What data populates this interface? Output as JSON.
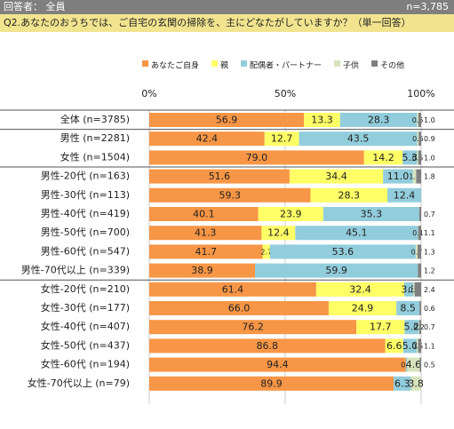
{
  "header": {
    "respondents": "回答者： 全員",
    "n_total": "n=3,785"
  },
  "question": "Q2.あなたのおうちでは、ご自宅の玄関の掃除を、主にどなたがしていますか？（単一回答）",
  "colors": {
    "self": "#f79646",
    "parent": "#ffff66",
    "spouse": "#92cddc",
    "child": "#d7e4bd",
    "other": "#7f7f7f"
  },
  "chart_data": {
    "type": "bar",
    "orientation": "horizontal",
    "stacked": "percent",
    "legend_position": "top-right",
    "xlim": [
      0,
      100
    ],
    "x_ticks": [
      "0%",
      "50%",
      "100%"
    ],
    "series": [
      {
        "name": "あなたご自身",
        "color": "#f79646"
      },
      {
        "name": "親",
        "color": "#ffff66"
      },
      {
        "name": "配偶者・パートナー",
        "color": "#92cddc"
      },
      {
        "name": "子供",
        "color": "#d7e4bd"
      },
      {
        "name": "その他",
        "color": "#7f7f7f"
      }
    ],
    "rows": [
      {
        "label": "全体 (n=3785)",
        "values": [
          56.9,
          13.3,
          28.3,
          0.5,
          1.0
        ],
        "labels": [
          "56.9",
          "13.3",
          "28.3",
          "0.5",
          "1.0"
        ]
      },
      {
        "label": "男性 (n=2281)",
        "values": [
          42.4,
          12.7,
          43.5,
          0.5,
          0.9
        ],
        "labels": [
          "42.4",
          "12.7",
          "43.5",
          "0.5",
          "0.9"
        ]
      },
      {
        "label": "女性 (n=1504)",
        "values": [
          79.0,
          14.2,
          5.3,
          0.5,
          1.0
        ],
        "labels": [
          "79.0",
          "14.2",
          "5.3",
          "0.5",
          "1.0"
        ]
      },
      {
        "label": "男性-20代 (n=163)",
        "values": [
          51.6,
          34.4,
          11.0,
          1.2,
          1.8
        ],
        "labels": [
          "51.6",
          "34.4",
          "11.0",
          "1.2",
          "1.8"
        ]
      },
      {
        "label": "男性-30代 (n=113)",
        "values": [
          59.3,
          28.3,
          12.4,
          0,
          0
        ],
        "labels": [
          "59.3",
          "28.3",
          "12.4",
          "",
          ""
        ]
      },
      {
        "label": "男性-40代 (n=419)",
        "values": [
          40.1,
          23.9,
          35.3,
          0,
          0.7
        ],
        "labels": [
          "40.1",
          "23.9",
          "35.3",
          "",
          "0.7"
        ]
      },
      {
        "label": "男性-50代 (n=700)",
        "values": [
          41.3,
          12.4,
          45.1,
          0.1,
          1.1
        ],
        "labels": [
          "41.3",
          "12.4",
          "45.1",
          "0.1",
          "1.1"
        ]
      },
      {
        "label": "男性-60代 (n=547)",
        "values": [
          41.7,
          2.7,
          53.6,
          0.7,
          1.3
        ],
        "labels": [
          "41.7",
          "2.7",
          "53.6",
          "0.7",
          "1.3"
        ]
      },
      {
        "label": "男性-70代以上 (n=339)",
        "values": [
          38.9,
          0,
          59.9,
          0,
          1.2
        ],
        "labels": [
          "38.9",
          "",
          "59.9",
          "",
          "1.2"
        ]
      },
      {
        "label": "女性-20代 (n=210)",
        "values": [
          61.4,
          32.4,
          3.3,
          0.5,
          2.4
        ],
        "labels": [
          "61.4",
          "32.4",
          "3.3",
          "0.5",
          "2.4"
        ]
      },
      {
        "label": "女性-30代 (n=177)",
        "values": [
          66.0,
          24.9,
          8.5,
          0,
          0.6
        ],
        "labels": [
          "66.0",
          "24.9",
          "8.5",
          "",
          "0.6"
        ]
      },
      {
        "label": "女性-40代 (n=407)",
        "values": [
          76.2,
          17.7,
          5.2,
          0.2,
          0.7
        ],
        "labels": [
          "76.2",
          "17.7",
          "5.2",
          "0.2",
          "0.7"
        ]
      },
      {
        "label": "女性-50代 (n=437)",
        "values": [
          86.8,
          6.6,
          5.0,
          0.5,
          1.1
        ],
        "labels": [
          "86.8",
          "6.6",
          "5.0",
          "0.5",
          "1.1"
        ]
      },
      {
        "label": "女性-60代 (n=194)",
        "values": [
          94.4,
          0,
          0.5,
          4.6,
          0.5
        ],
        "labels": [
          "94.4",
          "",
          "0.5",
          "4.6",
          "0.5"
        ]
      },
      {
        "label": "女性-70代以上 (n=79)",
        "values": [
          89.9,
          0,
          6.3,
          3.8,
          0
        ],
        "labels": [
          "89.9",
          "",
          "6.3",
          "3.8",
          ""
        ]
      }
    ]
  }
}
